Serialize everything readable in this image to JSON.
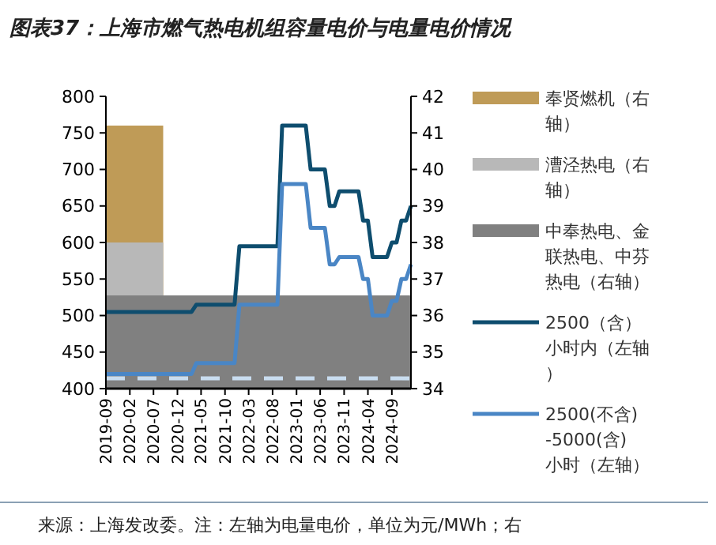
{
  "chart_data": {
    "type": "line",
    "title": "图表37：上海市燃气热电机组容量电价与电量电价情况",
    "annotations": [
      "来源：上海发改委。注：左轴为电量电价，单位为元/MWh；右"
    ],
    "xlim": [
      "2019-09",
      "2025-01"
    ],
    "xticks": [
      "2019-09",
      "2020-02",
      "2020-07",
      "2020-12",
      "2021-05",
      "2021-10",
      "2022-03",
      "2022-08",
      "2023-01",
      "2023-06",
      "2023-11",
      "2024-04",
      "2024-09"
    ],
    "ylim": [
      400,
      800
    ],
    "yticks": [
      400,
      450,
      500,
      550,
      600,
      650,
      700,
      750,
      800
    ],
    "y2lim": [
      34,
      42
    ],
    "y2ticks": [
      34,
      35,
      36,
      37,
      38,
      39,
      40,
      41,
      42
    ],
    "legend": "right",
    "grid": false,
    "series": [
      {
        "name": "奉贤燃机（右轴）",
        "type": "area",
        "axis": "y2",
        "color": "#bf9b57",
        "x": [
          "2019-09",
          "2020-09"
        ],
        "values": [
          41.2,
          41.2
        ]
      },
      {
        "name": "漕泾热电（右轴）",
        "type": "area",
        "axis": "y2",
        "color": "#b8b8b8",
        "x": [
          "2019-09",
          "2020-09"
        ],
        "values": [
          38,
          38
        ]
      },
      {
        "name": "中奉热电、金联热电、中芬热电（右轴）",
        "type": "area",
        "axis": "y2",
        "color": "#808080",
        "x": [
          "2019-09",
          "2025-01"
        ],
        "values": [
          36.55,
          36.55
        ]
      },
      {
        "name": "2500（含）小时内（左轴）",
        "axis": "y",
        "color": "#0e4d6e",
        "x": [
          "2019-09",
          "2021-03",
          "2021-04",
          "2021-12",
          "2022-01",
          "2022-09",
          "2022-10",
          "2023-03",
          "2023-04",
          "2023-07",
          "2023-08",
          "2023-09",
          "2023-10",
          "2024-02",
          "2024-03",
          "2024-04",
          "2024-05",
          "2024-08",
          "2024-09",
          "2024-10",
          "2024-11",
          "2024-12",
          "2025-01"
        ],
        "values": [
          505,
          505,
          515,
          515,
          595,
          595,
          760,
          760,
          700,
          700,
          650,
          650,
          670,
          670,
          630,
          630,
          580,
          580,
          600,
          600,
          630,
          630,
          650
        ]
      },
      {
        "name": "2500(不含)-5000(含)小时（左轴）",
        "axis": "y",
        "color": "#4a86c5",
        "x": [
          "2019-09",
          "2021-03",
          "2021-04",
          "2021-12",
          "2022-01",
          "2022-09",
          "2022-10",
          "2023-03",
          "2023-04",
          "2023-07",
          "2023-08",
          "2023-09",
          "2023-10",
          "2024-02",
          "2024-03",
          "2024-04",
          "2024-05",
          "2024-08",
          "2024-09",
          "2024-10",
          "2024-11",
          "2024-12",
          "2025-01"
        ],
        "values": [
          420,
          420,
          435,
          435,
          515,
          515,
          680,
          680,
          620,
          620,
          570,
          570,
          580,
          580,
          550,
          550,
          500,
          500,
          520,
          520,
          550,
          550,
          570
        ]
      },
      {
        "axis": "y",
        "color": "#c9ddf0",
        "line_style": "dashed",
        "x": [
          "2019-09",
          "2025-01"
        ],
        "values": [
          414,
          414
        ]
      }
    ]
  }
}
